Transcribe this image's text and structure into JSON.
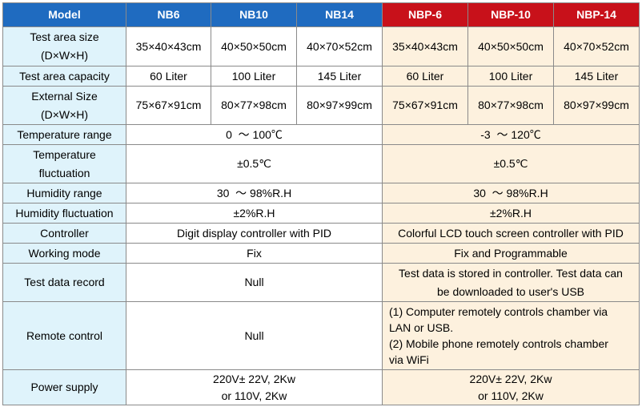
{
  "headers": [
    "Model",
    "NB6",
    "NB10",
    "NB14",
    "NBP-6",
    "NBP-10",
    "NBP-14"
  ],
  "rows": {
    "test_area_size": {
      "label": [
        "Test area size",
        "(D×W×H)"
      ],
      "nb": [
        "35×40×43cm",
        "40×50×50cm",
        "40×70×52cm"
      ],
      "nbp": [
        "35×40×43cm",
        "40×50×50cm",
        "40×70×52cm"
      ]
    },
    "capacity": {
      "label": "Test area capacity",
      "nb": [
        "60 Liter",
        "100 Liter",
        "145 Liter"
      ],
      "nbp": [
        "60 Liter",
        "100 Liter",
        "145 Liter"
      ]
    },
    "external_size": {
      "label": [
        "External Size",
        "(D×W×H)"
      ],
      "nb": [
        "75×67×91cm",
        "80×77×98cm",
        "80×97×99cm"
      ],
      "nbp": [
        "75×67×91cm",
        "80×77×98cm",
        "80×97×99cm"
      ]
    },
    "temp_range": {
      "label": "Temperature range",
      "nb": "0  ～ 100℃",
      "nbp": "-3  ～ 120℃"
    },
    "temp_fluct": {
      "label": [
        "Temperature",
        "fluctuation"
      ],
      "nb": "±0.5℃",
      "nbp": "±0.5℃"
    },
    "hum_range": {
      "label": "Humidity range",
      "nb": "30  ～ 98%R.H",
      "nbp": "30  ～ 98%R.H"
    },
    "hum_fluct": {
      "label": "Humidity fluctuation",
      "nb": "±2%R.H",
      "nbp": "±2%R.H"
    },
    "controller": {
      "label": "Controller",
      "nb": "Digit display controller with PID",
      "nbp": "Colorful LCD touch screen controller with PID"
    },
    "working_mode": {
      "label": "Working mode",
      "nb": "Fix",
      "nbp": "Fix and Programmable"
    },
    "data_record": {
      "label": "Test data record",
      "nb": "Null",
      "nbp": [
        "Test data is stored in controller. Test data can",
        "be downloaded to user's USB"
      ]
    },
    "remote": {
      "label": "Remote control",
      "nb": "Null",
      "nbp": [
        "(1) Computer remotely controls chamber via",
        "LAN or USB.",
        "(2) Mobile phone remotely controls chamber",
        "via WiFi"
      ]
    },
    "power": {
      "label": "Power supply",
      "nb": [
        "220V± 22V, 2Kw",
        "or 110V, 2Kw"
      ],
      "nbp": [
        "220V± 22V, 2Kw",
        "or 110V, 2Kw"
      ]
    }
  },
  "colors": {
    "header_blue": "#1f6bc0",
    "header_red": "#c8111a",
    "label_bg": "#dff3fb",
    "nbp_bg": "#fdf1de",
    "border": "#8a8a8a"
  }
}
